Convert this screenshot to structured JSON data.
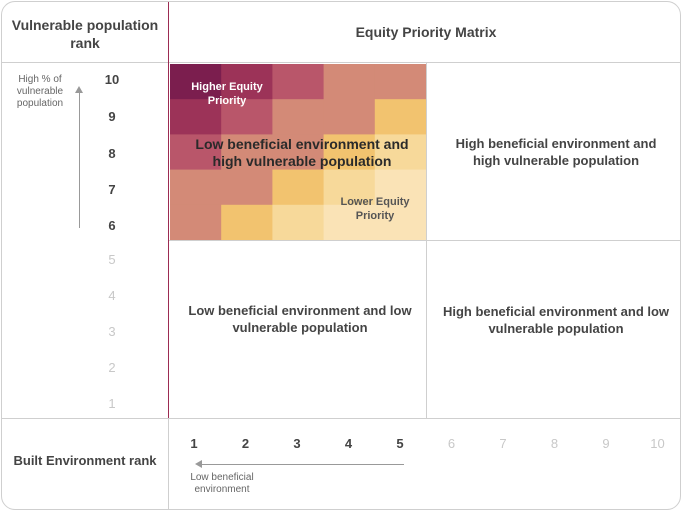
{
  "header": {
    "left_title": "Vulnerable population rank",
    "right_title": "Equity Priority Matrix"
  },
  "y_axis": {
    "label": "High % of vulnerable population",
    "ticks": [
      "10",
      "9",
      "8",
      "7",
      "6",
      "5",
      "4",
      "3",
      "2",
      "1"
    ]
  },
  "x_axis": {
    "title": "Built Environment rank",
    "label": "Low beneficial environment",
    "ticks": [
      "1",
      "2",
      "3",
      "4",
      "5",
      "6",
      "7",
      "8",
      "9",
      "10"
    ]
  },
  "heatmap": {
    "high_label": "Higher Equity Priority",
    "low_label": "Lower Equity Priority",
    "colors": [
      "#7b1e4e",
      "#9c3358",
      "#b9566a",
      "#d38a77",
      "#f2c36f",
      "#f7d99a",
      "#fae3b6"
    ]
  },
  "quadrants": {
    "top_left": "Low beneficial environment and high vulnerable population",
    "top_right": "High beneficial environment and high vulnerable population",
    "bottom_left": "Low beneficial environment and low vulnerable population",
    "bottom_right": "High beneficial environment and low vulnerable population"
  },
  "colors": {
    "accent_line": "#9c2b52",
    "grid_line": "#cfcfcf"
  }
}
